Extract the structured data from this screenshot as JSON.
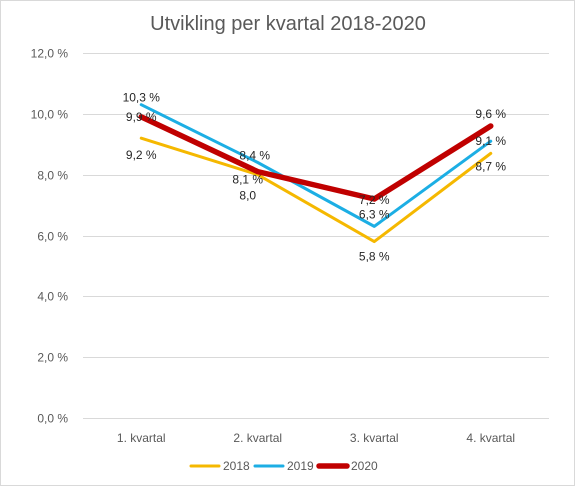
{
  "chart_data": {
    "type": "line",
    "title": "Utvikling per kvartal 2018-2020",
    "xlabel": "",
    "ylabel": "",
    "categories": [
      "1. kvartal",
      "2. kvartal",
      "3. kvartal",
      "4. kvartal"
    ],
    "ylim": [
      0,
      12
    ],
    "yticks": [
      0,
      2,
      4,
      6,
      8,
      10,
      12
    ],
    "ytick_labels": [
      "0,0 %",
      "2,0 %",
      "4,0 %",
      "6,0 %",
      "8,0 %",
      "10,0 %",
      "12,0 %"
    ],
    "grid": true,
    "legend_position": "bottom",
    "series": [
      {
        "name": "2018",
        "color": "#f5b800",
        "values": [
          9.2,
          8.0,
          5.8,
          8.7
        ],
        "labels": [
          "9,2 %",
          "8,0",
          "5,8 %",
          "8,7 %"
        ]
      },
      {
        "name": "2019",
        "color": "#1caee4",
        "values": [
          10.3,
          8.4,
          6.3,
          9.1
        ],
        "labels": [
          "10,3 %",
          "8,4 %",
          "6,3 %",
          "9,1 %"
        ]
      },
      {
        "name": "2020",
        "color": "#c00000",
        "values": [
          9.9,
          8.1,
          7.2,
          9.6
        ],
        "labels": [
          "9,9 %",
          "8,1 %",
          "7,2 %",
          "9,6 %"
        ]
      }
    ]
  }
}
